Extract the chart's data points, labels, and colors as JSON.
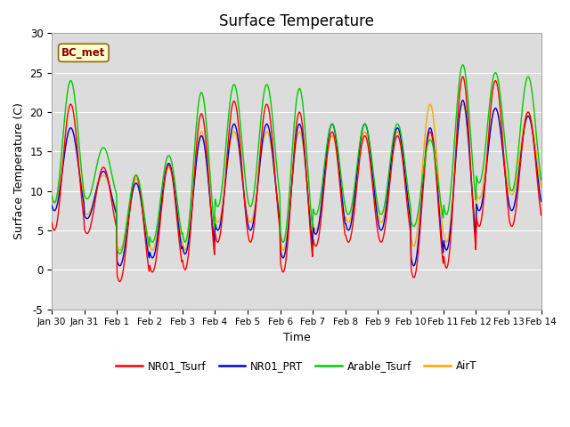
{
  "title": "Surface Temperature",
  "xlabel": "Time",
  "ylabel": "Surface Temperature (C)",
  "ylim": [
    -5,
    30
  ],
  "xlim_days": 15,
  "background_color": "#dcdcdc",
  "figure_bg": "#ffffff",
  "annotation_text": "BC_met",
  "legend_entries": [
    "NR01_Tsurf",
    "NR01_PRT",
    "Arable_Tsurf",
    "AirT"
  ],
  "line_colors": {
    "NR01_Tsurf": "#ff0000",
    "NR01_PRT": "#0000cd",
    "Arable_Tsurf": "#00cc00",
    "AirT": "#ffa500"
  },
  "xtick_labels": [
    "Jan 30",
    "Jan 31",
    "Feb 1",
    "Feb 2",
    "Feb 3",
    "Feb 4",
    "Feb 5",
    "Feb 6",
    "Feb 7",
    "Feb 8",
    "Feb 9",
    "Feb 10",
    "Feb 11",
    "Feb 12",
    "Feb 13",
    "Feb 14"
  ],
  "xtick_positions": [
    0,
    1,
    2,
    3,
    4,
    5,
    6,
    7,
    8,
    9,
    10,
    11,
    12,
    13,
    14,
    15
  ],
  "ytick_positions": [
    -5,
    0,
    5,
    10,
    15,
    20,
    25,
    30
  ],
  "day_peaks_NR01": [
    21.0,
    13.0,
    12.0,
    13.3,
    19.8,
    21.4,
    21.0,
    20.0,
    17.5,
    17.0,
    17.0,
    17.5,
    24.5,
    24.0,
    20.0
  ],
  "day_mins_NR01": [
    5.0,
    4.6,
    -1.5,
    -0.3,
    0.0,
    3.5,
    3.5,
    -0.3,
    3.0,
    3.5,
    3.5,
    -1.0,
    0.2,
    5.5,
    5.5
  ],
  "day_peaks_PRT": [
    18.0,
    12.5,
    11.0,
    13.5,
    17.0,
    18.5,
    18.5,
    18.5,
    18.5,
    18.5,
    18.0,
    18.0,
    21.5,
    20.5,
    19.5
  ],
  "day_mins_PRT": [
    7.5,
    6.5,
    0.5,
    1.5,
    2.0,
    5.0,
    5.0,
    1.5,
    4.5,
    5.0,
    5.0,
    0.5,
    2.5,
    7.5,
    7.5
  ],
  "day_peaks_Arable": [
    24.0,
    15.5,
    12.0,
    14.5,
    22.5,
    23.5,
    23.5,
    23.0,
    18.5,
    18.5,
    18.5,
    16.5,
    26.0,
    25.0,
    24.5
  ],
  "day_mins_Arable": [
    8.5,
    9.0,
    2.0,
    3.5,
    3.5,
    8.0,
    8.0,
    3.5,
    7.0,
    7.0,
    7.0,
    5.5,
    7.0,
    11.0,
    10.0
  ],
  "day_peaks_AirT": [
    18.0,
    12.0,
    11.5,
    13.0,
    17.5,
    17.5,
    17.5,
    17.5,
    17.0,
    17.5,
    17.5,
    21.0,
    21.0,
    20.5,
    20.0
  ],
  "day_mins_AirT": [
    8.5,
    7.0,
    2.5,
    2.5,
    2.5,
    6.0,
    6.0,
    2.5,
    5.0,
    6.0,
    6.0,
    3.0,
    3.5,
    9.0,
    9.5
  ]
}
